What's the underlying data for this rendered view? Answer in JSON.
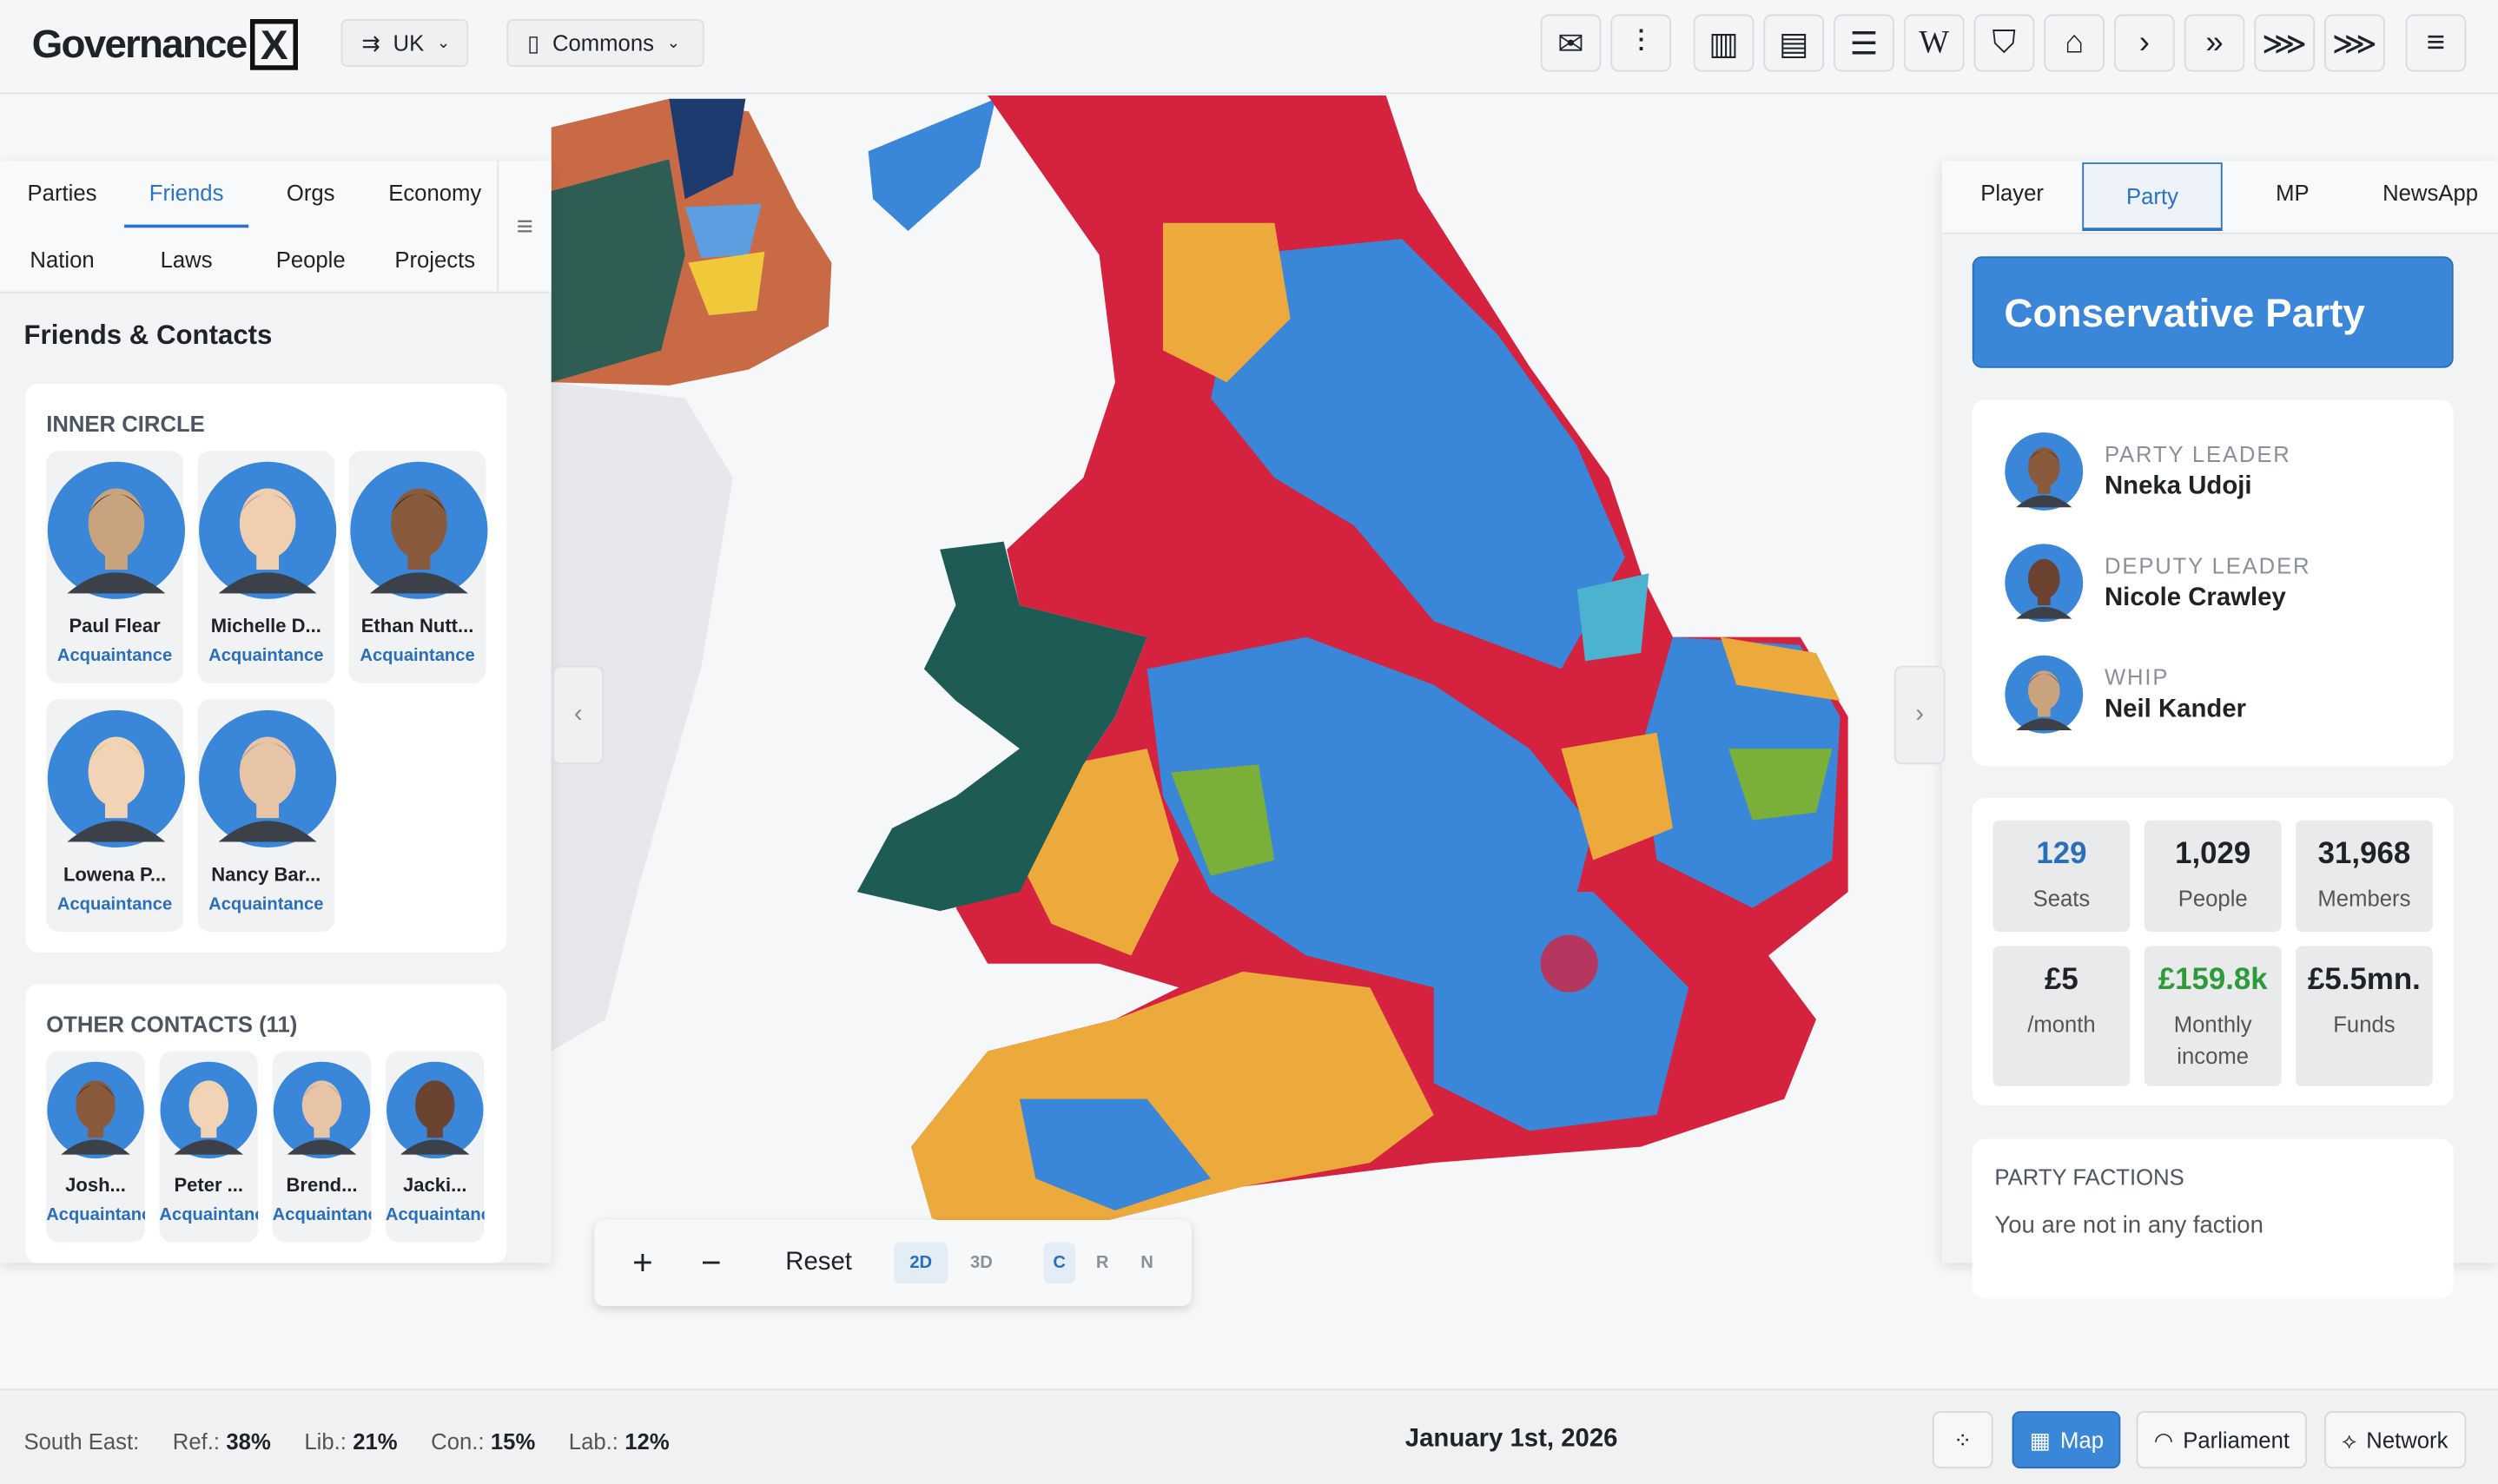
{
  "header": {
    "logo": "Governance",
    "logo_mark": "X",
    "region": "UK",
    "chamber": "Commons",
    "toolbar_letter": "W"
  },
  "left_panel": {
    "tabs": [
      "Parties",
      "Friends",
      "Orgs",
      "Economy",
      "Nation",
      "Laws",
      "People",
      "Projects"
    ],
    "title": "Friends & Contacts",
    "inner_circle": {
      "heading": "INNER CIRCLE",
      "people": [
        {
          "name": "Paul Flear",
          "relation": "Acquaintance"
        },
        {
          "name": "Michelle D...",
          "relation": "Acquaintance"
        },
        {
          "name": "Ethan Nutt...",
          "relation": "Acquaintance"
        },
        {
          "name": "Lowena P...",
          "relation": "Acquaintance"
        },
        {
          "name": "Nancy Bar...",
          "relation": "Acquaintance"
        }
      ]
    },
    "other_contacts": {
      "heading": "OTHER CONTACTS (11)",
      "people": [
        {
          "name": "Josh...",
          "relation": "Acquaintance"
        },
        {
          "name": "Peter ...",
          "relation": "Acquaintance"
        },
        {
          "name": "Brend...",
          "relation": "Acquaintance"
        },
        {
          "name": "Jacki...",
          "relation": "Acquaintance"
        }
      ]
    }
  },
  "right_panel": {
    "tabs": [
      "Player",
      "Party",
      "MP",
      "NewsApp"
    ],
    "party_name": "Conservative Party",
    "leaders": [
      {
        "role": "PARTY LEADER",
        "name": "Nneka Udoji"
      },
      {
        "role": "DEPUTY LEADER",
        "name": "Nicole Crawley"
      },
      {
        "role": "WHIP",
        "name": "Neil Kander"
      }
    ],
    "stats": [
      {
        "value": "129",
        "label": "Seats"
      },
      {
        "value": "1,029",
        "label": "People"
      },
      {
        "value": "31,968",
        "label": "Members"
      },
      {
        "value": "£5",
        "label": "/month"
      },
      {
        "value": "£159.8k",
        "label": "Monthly income"
      },
      {
        "value": "£5.5mn.",
        "label": "Funds"
      }
    ],
    "factions": {
      "heading": "PARTY FACTIONS",
      "text": "You are not in any faction"
    }
  },
  "map_controls": {
    "zoom_in": "+",
    "zoom_out": "−",
    "reset": "Reset",
    "modes": [
      "2D",
      "3D"
    ],
    "filters": [
      "C",
      "R",
      "N"
    ]
  },
  "footer": {
    "region": "South East:",
    "polls": [
      {
        "party": "Ref.:",
        "share": "38%"
      },
      {
        "party": "Lib.:",
        "share": "21%"
      },
      {
        "party": "Con.:",
        "share": "15%"
      },
      {
        "party": "Lab.:",
        "share": "12%"
      }
    ],
    "date": "January 1st, 2026",
    "views": [
      "Map",
      "Parliament",
      "Network"
    ]
  }
}
